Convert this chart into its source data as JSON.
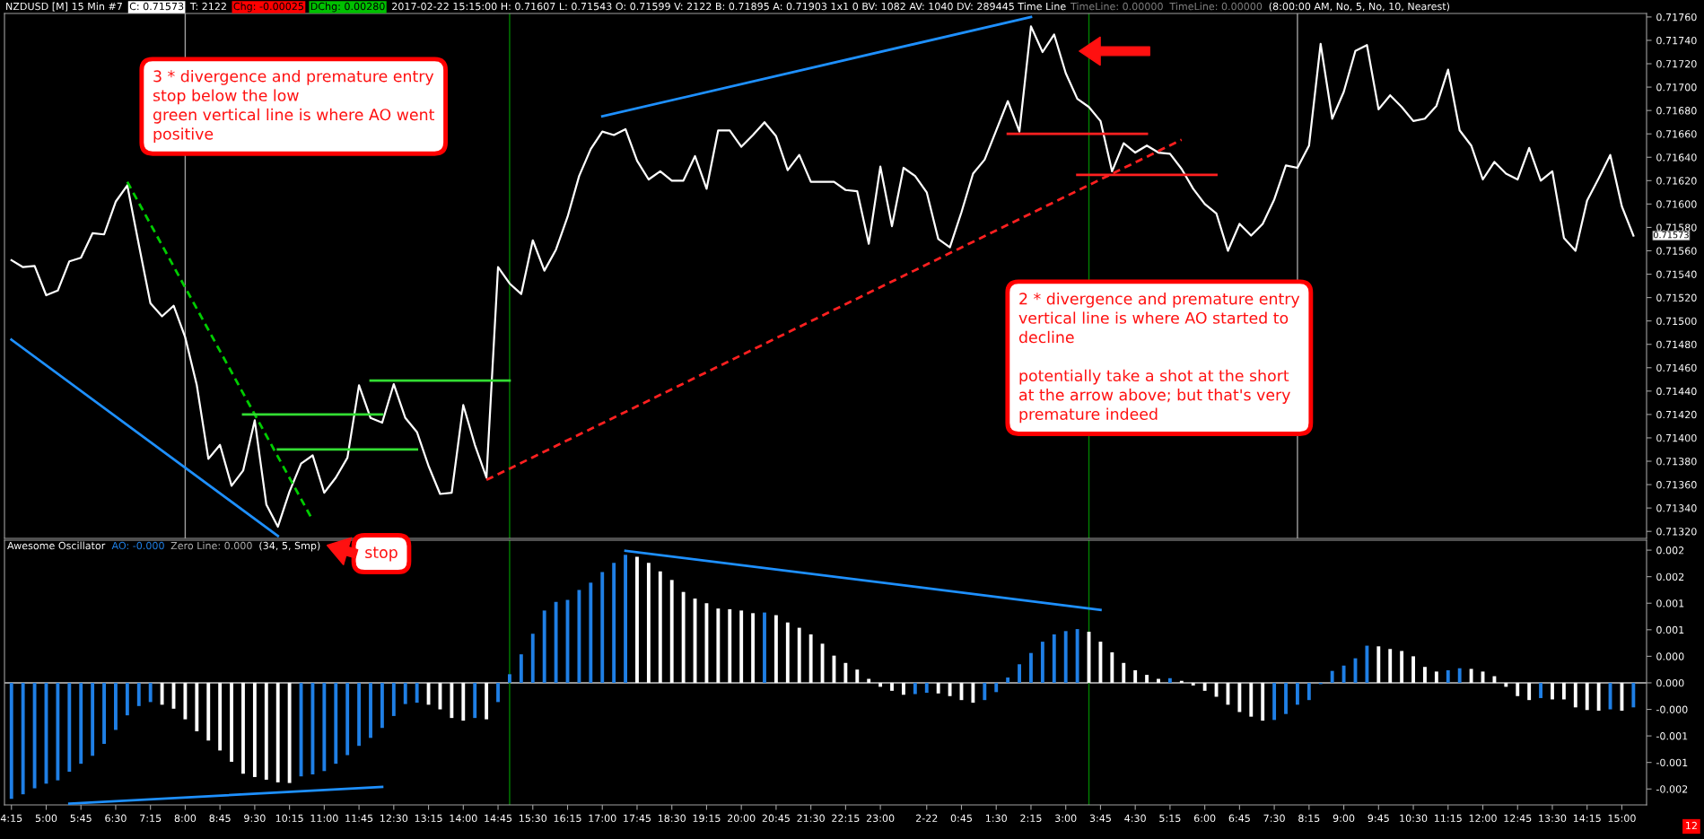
{
  "chart_data": [
    {
      "type": "line",
      "title": "NZDUSD [M] 15 Min #7",
      "x": [
        "2017-02-21T04:15",
        "2017-02-21T04:30",
        "2017-02-21T04:45",
        "2017-02-21T05:00",
        "2017-02-21T05:15",
        "2017-02-21T05:30",
        "2017-02-21T05:45",
        "2017-02-21T06:00",
        "2017-02-21T06:15",
        "2017-02-21T06:30",
        "2017-02-21T06:45",
        "2017-02-21T07:00",
        "2017-02-21T07:15",
        "2017-02-21T07:30",
        "2017-02-21T07:45",
        "2017-02-21T08:00",
        "2017-02-21T08:15",
        "2017-02-21T08:30",
        "2017-02-21T08:45",
        "2017-02-21T09:00",
        "2017-02-21T09:15",
        "2017-02-21T09:30",
        "2017-02-21T09:45",
        "2017-02-21T10:00",
        "2017-02-21T10:15",
        "2017-02-21T10:30",
        "2017-02-21T10:45",
        "2017-02-21T11:00",
        "2017-02-21T11:15",
        "2017-02-21T11:30",
        "2017-02-21T11:45",
        "2017-02-21T12:00",
        "2017-02-21T12:15",
        "2017-02-21T12:30",
        "2017-02-21T12:45",
        "2017-02-21T13:00",
        "2017-02-21T13:15",
        "2017-02-21T13:30",
        "2017-02-21T13:45",
        "2017-02-21T14:00",
        "2017-02-21T14:15",
        "2017-02-21T14:30",
        "2017-02-21T14:45",
        "2017-02-21T15:00",
        "2017-02-21T15:15",
        "2017-02-21T15:30",
        "2017-02-21T15:45",
        "2017-02-21T16:00",
        "2017-02-21T16:15",
        "2017-02-21T16:30",
        "2017-02-21T16:45",
        "2017-02-21T17:00",
        "2017-02-21T17:15",
        "2017-02-21T17:30",
        "2017-02-21T17:45",
        "2017-02-21T18:00",
        "2017-02-21T18:15",
        "2017-02-21T18:30",
        "2017-02-21T18:45",
        "2017-02-21T19:00",
        "2017-02-21T19:15",
        "2017-02-21T19:30",
        "2017-02-21T19:45",
        "2017-02-21T20:00",
        "2017-02-21T20:15",
        "2017-02-21T20:30",
        "2017-02-21T20:45",
        "2017-02-21T21:00",
        "2017-02-21T21:15",
        "2017-02-21T21:30",
        "2017-02-21T21:45",
        "2017-02-21T22:00",
        "2017-02-21T22:15",
        "2017-02-21T22:30",
        "2017-02-21T22:45",
        "2017-02-21T23:00",
        "2017-02-21T23:15",
        "2017-02-21T23:30",
        "2017-02-21T23:45",
        "2017-02-22T00:00",
        "2017-02-22T00:15",
        "2017-02-22T00:30",
        "2017-02-22T00:45",
        "2017-02-22T01:00",
        "2017-02-22T01:15",
        "2017-02-22T01:30",
        "2017-02-22T01:45",
        "2017-02-22T02:00",
        "2017-02-22T02:15",
        "2017-02-22T02:30",
        "2017-02-22T02:45",
        "2017-02-22T03:00",
        "2017-02-22T03:15",
        "2017-02-22T03:30",
        "2017-02-22T03:45",
        "2017-02-22T04:00",
        "2017-02-22T04:15",
        "2017-02-22T04:30",
        "2017-02-22T04:45",
        "2017-02-22T05:00",
        "2017-02-22T05:15",
        "2017-02-22T05:30",
        "2017-02-22T05:45",
        "2017-02-22T06:00",
        "2017-02-22T06:15",
        "2017-02-22T06:30",
        "2017-02-22T06:45",
        "2017-02-22T07:00",
        "2017-02-22T07:15",
        "2017-02-22T07:30",
        "2017-02-22T07:45",
        "2017-02-22T08:00",
        "2017-02-22T08:15",
        "2017-02-22T08:30",
        "2017-02-22T08:45",
        "2017-02-22T09:00",
        "2017-02-22T09:15",
        "2017-02-22T09:30",
        "2017-02-22T09:45",
        "2017-02-22T10:00",
        "2017-02-22T10:15",
        "2017-02-22T10:30",
        "2017-02-22T10:45",
        "2017-02-22T11:00",
        "2017-02-22T11:15",
        "2017-02-22T11:30",
        "2017-02-22T11:45",
        "2017-02-22T12:00",
        "2017-02-22T12:15",
        "2017-02-22T12:30",
        "2017-02-22T12:45",
        "2017-02-22T13:00",
        "2017-02-22T13:15",
        "2017-02-22T13:30",
        "2017-02-22T13:45",
        "2017-02-22T14:00",
        "2017-02-22T14:15",
        "2017-02-22T14:30",
        "2017-02-22T14:45",
        "2017-02-22T15:00",
        "2017-02-22T15:15"
      ],
      "series": [
        {
          "color": "#ffffff",
          "values": [
            0.71552,
            0.71546,
            0.71547,
            0.71522,
            0.71526,
            0.71551,
            0.71554,
            0.71575,
            0.71574,
            0.71602,
            0.71616,
            0.71565,
            0.71515,
            0.71504,
            0.71513,
            0.71486,
            0.71445,
            0.71382,
            0.71394,
            0.71359,
            0.71372,
            0.71415,
            0.71343,
            0.71324,
            0.71354,
            0.71378,
            0.71385,
            0.71353,
            0.71366,
            0.71383,
            0.71445,
            0.71417,
            0.71413,
            0.71446,
            0.71417,
            0.71405,
            0.71376,
            0.71352,
            0.71353,
            0.71428,
            0.71394,
            0.71366,
            0.71546,
            0.71532,
            0.71523,
            0.71569,
            0.71543,
            0.71561,
            0.71589,
            0.71624,
            0.71647,
            0.71662,
            0.71659,
            0.71664,
            0.71637,
            0.71621,
            0.71628,
            0.7162,
            0.7162,
            0.71641,
            0.71613,
            0.71663,
            0.71663,
            0.71649,
            0.71659,
            0.7167,
            0.71658,
            0.71629,
            0.71642,
            0.71619,
            0.71619,
            0.71619,
            0.71612,
            0.71611,
            0.71566,
            0.71632,
            0.71581,
            0.71631,
            0.71624,
            0.7161,
            0.7157,
            0.71563,
            0.71593,
            0.71626,
            0.71638,
            0.71663,
            0.71688,
            0.71662,
            0.71752,
            0.7173,
            0.71745,
            0.71712,
            0.7169,
            0.71683,
            0.71671,
            0.71628,
            0.71652,
            0.71644,
            0.7165,
            0.71644,
            0.71643,
            0.7163,
            0.71613,
            0.716,
            0.71592,
            0.7156,
            0.71583,
            0.71573,
            0.71583,
            0.71604,
            0.71633,
            0.71631,
            0.7165,
            0.71737,
            0.71673,
            0.71696,
            0.71731,
            0.71736,
            0.71681,
            0.71693,
            0.71683,
            0.71671,
            0.71673,
            0.71684,
            0.71715,
            0.71663,
            0.7165,
            0.71621,
            0.71636,
            0.71626,
            0.71621,
            0.71648,
            0.7162,
            0.71628,
            0.71571,
            0.7156,
            0.71603,
            0.71622,
            0.71642,
            0.71598,
            0.71573
          ]
        },
        {
          "type": "line",
          "color": "#1e90ff",
          "x": [
            "2017-02-21T04:15",
            "2017-02-21T10:00"
          ],
          "values": [
            0.71484,
            0.71316
          ]
        },
        {
          "type": "line",
          "color": "#00cc00",
          "line_style": "dashed",
          "x": [
            "2017-02-21T06:45",
            "2017-02-21T10:43"
          ],
          "values": [
            0.71619,
            0.71332
          ]
        },
        {
          "type": "line",
          "color": "#33dd33",
          "x": [
            "2017-02-21T09:15",
            "2017-02-21T12:15"
          ],
          "values": [
            0.7142,
            0.7142
          ]
        },
        {
          "type": "line",
          "color": "#33dd33",
          "x": [
            "2017-02-21T10:00",
            "2017-02-21T13:00"
          ],
          "values": [
            0.7139,
            0.7139
          ]
        },
        {
          "type": "line",
          "color": "#33dd33",
          "x": [
            "2017-02-21T12:00",
            "2017-02-21T15:00"
          ],
          "values": [
            0.71449,
            0.71449
          ]
        },
        {
          "type": "line",
          "color": "#ff2020",
          "line_style": "dashed",
          "x": [
            "2017-02-21T14:30",
            "2017-02-22T05:30"
          ],
          "values": [
            0.71364,
            0.71655
          ]
        },
        {
          "type": "line",
          "color": "#1e90ff",
          "x": [
            "2017-02-21T17:00",
            "2017-02-22T02:15"
          ],
          "values": [
            0.71675,
            0.7176
          ]
        },
        {
          "type": "line",
          "color": "#ff2020",
          "x": [
            "2017-02-22T01:45",
            "2017-02-22T04:45"
          ],
          "values": [
            0.7166,
            0.7166
          ]
        },
        {
          "type": "line",
          "color": "#ff2020",
          "x": [
            "2017-02-22T03:15",
            "2017-02-22T06:15"
          ],
          "values": [
            0.71625,
            0.71625
          ]
        }
      ],
      "xlim": [
        "2017-02-21T04:06",
        "2017-02-22T15:32"
      ],
      "ylim": [
        0.71314,
        0.71763
      ],
      "yticks": [
        {
          "value": 0.7132,
          "label": "0.71320"
        },
        {
          "value": 0.7134,
          "label": "0.71340"
        },
        {
          "value": 0.7136,
          "label": "0.71360"
        },
        {
          "value": 0.7138,
          "label": "0.71380"
        },
        {
          "value": 0.714,
          "label": "0.71400"
        },
        {
          "value": 0.7142,
          "label": "0.71420"
        },
        {
          "value": 0.7144,
          "label": "0.71440"
        },
        {
          "value": 0.7146,
          "label": "0.71460"
        },
        {
          "value": 0.7148,
          "label": "0.71480"
        },
        {
          "value": 0.715,
          "label": "0.71500"
        },
        {
          "value": 0.7152,
          "label": "0.71520"
        },
        {
          "value": 0.7154,
          "label": "0.71540"
        },
        {
          "value": 0.7156,
          "label": "0.71560"
        },
        {
          "value": 0.7158,
          "label": "0.71580"
        },
        {
          "value": 0.716,
          "label": "0.71600"
        },
        {
          "value": 0.7162,
          "label": "0.71620"
        },
        {
          "value": 0.7164,
          "label": "0.71640"
        },
        {
          "value": 0.7166,
          "label": "0.71660"
        },
        {
          "value": 0.7168,
          "label": "0.71680"
        },
        {
          "value": 0.717,
          "label": "0.71700"
        },
        {
          "value": 0.7172,
          "label": "0.71720"
        },
        {
          "value": 0.7174,
          "label": "0.71740"
        },
        {
          "value": 0.7176,
          "label": "0.71760"
        }
      ],
      "tick_labels": "y",
      "ref_lines": [
        {
          "axis": "x",
          "value": "2017-02-21T08:00",
          "color": "#a0a0a0"
        },
        {
          "axis": "x",
          "value": "2017-02-21T15:00",
          "color": "#008000"
        },
        {
          "axis": "x",
          "value": "2017-02-22T03:30",
          "color": "#008000"
        },
        {
          "axis": "x",
          "value": "2017-02-22T08:00",
          "color": "#a0a0a0"
        }
      ],
      "annotations": [
        "C: 0.71573",
        "T: 2122",
        "Chg: -0.00025",
        "DChg: 0.00280",
        "2017-02-22 15:15:00 H: 0.71607 L: 0.71543 O: 0.71599 V: 2122 B: 0.71895 A: 0.71903 1x1 0 BV: 1082 AV: 1040 DV: 289445 Time Line",
        "TimeLine: 0.00000",
        "TimeLine: 0.00000",
        "(8:00:00 AM, No, 5, No, 10, Nearest)",
        "3 * divergence and premature entry\nstop below the low\ngreen vertical line is where AO went\npositive",
        "2 * divergence and premature entry\nvertical line is where AO started to\ndecline\n\npotentially take a shot at the short\nat the arrow above; but that's very\npremature indeed",
        "stop",
        {
          "text": "0.71573",
          "x": "2017-02-22T15:15",
          "y": 0.71573
        }
      ]
    },
    {
      "type": "bar",
      "title": "Awesome Oscillator",
      "x": [
        "2017-02-21T04:15",
        "2017-02-21T04:30",
        "2017-02-21T04:45",
        "2017-02-21T05:00",
        "2017-02-21T05:15",
        "2017-02-21T05:30",
        "2017-02-21T05:45",
        "2017-02-21T06:00",
        "2017-02-21T06:15",
        "2017-02-21T06:30",
        "2017-02-21T06:45",
        "2017-02-21T07:00",
        "2017-02-21T07:15",
        "2017-02-21T07:30",
        "2017-02-21T07:45",
        "2017-02-21T08:00",
        "2017-02-21T08:15",
        "2017-02-21T08:30",
        "2017-02-21T08:45",
        "2017-02-21T09:00",
        "2017-02-21T09:15",
        "2017-02-21T09:30",
        "2017-02-21T09:45",
        "2017-02-21T10:00",
        "2017-02-21T10:15",
        "2017-02-21T10:30",
        "2017-02-21T10:45",
        "2017-02-21T11:00",
        "2017-02-21T11:15",
        "2017-02-21T11:30",
        "2017-02-21T11:45",
        "2017-02-21T12:00",
        "2017-02-21T12:15",
        "2017-02-21T12:30",
        "2017-02-21T12:45",
        "2017-02-21T13:00",
        "2017-02-21T13:15",
        "2017-02-21T13:30",
        "2017-02-21T13:45",
        "2017-02-21T14:00",
        "2017-02-21T14:15",
        "2017-02-21T14:30",
        "2017-02-21T14:45",
        "2017-02-21T15:00",
        "2017-02-21T15:15",
        "2017-02-21T15:30",
        "2017-02-21T15:45",
        "2017-02-21T16:00",
        "2017-02-21T16:15",
        "2017-02-21T16:30",
        "2017-02-21T16:45",
        "2017-02-21T17:00",
        "2017-02-21T17:15",
        "2017-02-21T17:30",
        "2017-02-21T17:45",
        "2017-02-21T18:00",
        "2017-02-21T18:15",
        "2017-02-21T18:30",
        "2017-02-21T18:45",
        "2017-02-21T19:00",
        "2017-02-21T19:15",
        "2017-02-21T19:30",
        "2017-02-21T19:45",
        "2017-02-21T20:00",
        "2017-02-21T20:15",
        "2017-02-21T20:30",
        "2017-02-21T20:45",
        "2017-02-21T21:00",
        "2017-02-21T21:15",
        "2017-02-21T21:30",
        "2017-02-21T21:45",
        "2017-02-21T22:00",
        "2017-02-21T22:15",
        "2017-02-21T22:30",
        "2017-02-21T22:45",
        "2017-02-21T23:00",
        "2017-02-21T23:15",
        "2017-02-21T23:30",
        "2017-02-21T23:45",
        "2017-02-22T00:00",
        "2017-02-22T00:15",
        "2017-02-22T00:30",
        "2017-02-22T00:45",
        "2017-02-22T01:00",
        "2017-02-22T01:15",
        "2017-02-22T01:30",
        "2017-02-22T01:45",
        "2017-02-22T02:00",
        "2017-02-22T02:15",
        "2017-02-22T02:30",
        "2017-02-22T02:45",
        "2017-02-22T03:00",
        "2017-02-22T03:15",
        "2017-02-22T03:30",
        "2017-02-22T03:45",
        "2017-02-22T04:00",
        "2017-02-22T04:15",
        "2017-02-22T04:30",
        "2017-02-22T04:45",
        "2017-02-22T05:00",
        "2017-02-22T05:15",
        "2017-02-22T05:30",
        "2017-02-22T05:45",
        "2017-02-22T06:00",
        "2017-02-22T06:15",
        "2017-02-22T06:30",
        "2017-02-22T06:45",
        "2017-02-22T07:00",
        "2017-02-22T07:15",
        "2017-02-22T07:30",
        "2017-02-22T07:45",
        "2017-02-22T08:00",
        "2017-02-22T08:15",
        "2017-02-22T08:30",
        "2017-02-22T08:45",
        "2017-02-22T09:00",
        "2017-02-22T09:15",
        "2017-02-22T09:30",
        "2017-02-22T09:45",
        "2017-02-22T10:00",
        "2017-02-22T10:15",
        "2017-02-22T10:30",
        "2017-02-22T10:45",
        "2017-02-22T11:00",
        "2017-02-22T11:15",
        "2017-02-22T11:30",
        "2017-02-22T11:45",
        "2017-02-22T12:00",
        "2017-02-22T12:15",
        "2017-02-22T12:30",
        "2017-02-22T12:45",
        "2017-02-22T13:00",
        "2017-02-22T13:15",
        "2017-02-22T13:30",
        "2017-02-22T13:45",
        "2017-02-22T14:00",
        "2017-02-22T14:15",
        "2017-02-22T14:30",
        "2017-02-22T14:45",
        "2017-02-22T15:00",
        "2017-02-22T15:15"
      ],
      "series": [
        {
          "values": [
            -0.00175,
            -0.00168,
            -0.00159,
            -0.00152,
            -0.00147,
            -0.00134,
            -0.00122,
            -0.0011,
            -0.00092,
            -0.00071,
            -0.00049,
            -0.00035,
            -0.00029,
            -0.00033,
            -0.00039,
            -0.00055,
            -0.00073,
            -0.00087,
            -0.00102,
            -0.00119,
            -0.00137,
            -0.00142,
            -0.00146,
            -0.0015,
            -0.00151,
            -0.00141,
            -0.00138,
            -0.00133,
            -0.00122,
            -0.00109,
            -0.00095,
            -0.00083,
            -0.00068,
            -0.0005,
            -0.00032,
            -0.0003,
            -0.00033,
            -0.0004,
            -0.00053,
            -0.00057,
            -0.00053,
            -0.00055,
            -0.00029,
            0.00013,
            0.00043,
            0.00074,
            0.00109,
            0.00122,
            0.00125,
            0.0014,
            0.00151,
            0.00167,
            0.00181,
            0.00193,
            0.0019,
            0.00181,
            0.00168,
            0.00155,
            0.00137,
            0.00127,
            0.0012,
            0.00112,
            0.00111,
            0.00109,
            0.00105,
            0.00106,
            0.00102,
            0.00091,
            0.00083,
            0.00073,
            0.00059,
            0.00041,
            0.0003,
            0.0002,
            6e-05,
            -6e-05,
            -0.00012,
            -0.00018,
            -0.00017,
            -0.00015,
            -0.00016,
            -0.0002,
            -0.00026,
            -0.0003,
            -0.00026,
            -0.00014,
            8e-05,
            0.00028,
            0.00045,
            0.00062,
            0.00073,
            0.00078,
            0.00081,
            0.00077,
            0.00062,
            0.00046,
            0.0003,
            0.00019,
            0.00012,
            6e-05,
            7e-05,
            3e-05,
            -4e-05,
            -0.00012,
            -0.00021,
            -0.00033,
            -0.00044,
            -0.00051,
            -0.00057,
            -0.00056,
            -0.00047,
            -0.00033,
            -0.00026,
            -2e-05,
            0.00018,
            0.00026,
            0.00037,
            0.00056,
            0.00055,
            0.00051,
            0.00048,
            0.0004,
            0.00024,
            0.00017,
            0.00019,
            0.00022,
            0.00021,
            0.00017,
            0.0001,
            -6e-05,
            -0.0002,
            -0.00026,
            -0.00023,
            -0.00025,
            -0.00025,
            -0.00037,
            -0.00041,
            -0.00042,
            -0.0004,
            -0.00042,
            -0.00037
          ],
          "colors": [
            "#1f7fe5",
            "#1f7fe5",
            "#1f7fe5",
            "#1f7fe5",
            "#1f7fe5",
            "#1f7fe5",
            "#1f7fe5",
            "#1f7fe5",
            "#1f7fe5",
            "#1f7fe5",
            "#1f7fe5",
            "#1f7fe5",
            "#1f7fe5",
            "#ffffff",
            "#ffffff",
            "#ffffff",
            "#ffffff",
            "#ffffff",
            "#ffffff",
            "#ffffff",
            "#ffffff",
            "#ffffff",
            "#ffffff",
            "#ffffff",
            "#ffffff",
            "#1f7fe5",
            "#1f7fe5",
            "#1f7fe5",
            "#1f7fe5",
            "#1f7fe5",
            "#1f7fe5",
            "#1f7fe5",
            "#1f7fe5",
            "#1f7fe5",
            "#1f7fe5",
            "#1f7fe5",
            "#ffffff",
            "#ffffff",
            "#ffffff",
            "#ffffff",
            "#1f7fe5",
            "#ffffff",
            "#1f7fe5",
            "#1f7fe5",
            "#1f7fe5",
            "#1f7fe5",
            "#1f7fe5",
            "#1f7fe5",
            "#1f7fe5",
            "#1f7fe5",
            "#1f7fe5",
            "#1f7fe5",
            "#1f7fe5",
            "#1f7fe5",
            "#ffffff",
            "#ffffff",
            "#ffffff",
            "#ffffff",
            "#ffffff",
            "#ffffff",
            "#ffffff",
            "#ffffff",
            "#ffffff",
            "#ffffff",
            "#ffffff",
            "#1f7fe5",
            "#ffffff",
            "#ffffff",
            "#ffffff",
            "#ffffff",
            "#ffffff",
            "#ffffff",
            "#ffffff",
            "#ffffff",
            "#ffffff",
            "#ffffff",
            "#ffffff",
            "#ffffff",
            "#1f7fe5",
            "#1f7fe5",
            "#ffffff",
            "#ffffff",
            "#ffffff",
            "#ffffff",
            "#1f7fe5",
            "#1f7fe5",
            "#1f7fe5",
            "#1f7fe5",
            "#1f7fe5",
            "#1f7fe5",
            "#1f7fe5",
            "#1f7fe5",
            "#1f7fe5",
            "#ffffff",
            "#ffffff",
            "#ffffff",
            "#ffffff",
            "#ffffff",
            "#ffffff",
            "#ffffff",
            "#1f7fe5",
            "#ffffff",
            "#ffffff",
            "#ffffff",
            "#ffffff",
            "#ffffff",
            "#ffffff",
            "#ffffff",
            "#ffffff",
            "#1f7fe5",
            "#1f7fe5",
            "#1f7fe5",
            "#1f7fe5",
            "#1f7fe5",
            "#1f7fe5",
            "#1f7fe5",
            "#1f7fe5",
            "#1f7fe5",
            "#ffffff",
            "#ffffff",
            "#ffffff",
            "#ffffff",
            "#ffffff",
            "#ffffff",
            "#1f7fe5",
            "#1f7fe5",
            "#ffffff",
            "#ffffff",
            "#ffffff",
            "#ffffff",
            "#ffffff",
            "#ffffff",
            "#1f7fe5",
            "#ffffff",
            "#ffffff",
            "#ffffff",
            "#ffffff",
            "#ffffff",
            "#1f7fe5",
            "#ffffff",
            "#1f7fe5"
          ]
        },
        {
          "type": "line",
          "color": "#1e90ff",
          "x": [
            "2017-02-21T05:30",
            "2017-02-21T12:15"
          ],
          "values": [
            -0.00182,
            -0.00157
          ]
        },
        {
          "type": "line",
          "color": "#1e90ff",
          "x": [
            "2017-02-21T17:30",
            "2017-02-22T03:45"
          ],
          "values": [
            0.00199,
            0.0011
          ]
        }
      ],
      "xlim": [
        "2017-02-21T04:06",
        "2017-02-22T15:32"
      ],
      "xticks": [
        {
          "value": "2017-02-21T04:15",
          "label": "4:15"
        },
        {
          "value": "2017-02-21T05:00",
          "label": "5:00"
        },
        {
          "value": "2017-02-21T05:45",
          "label": "5:45"
        },
        {
          "value": "2017-02-21T06:30",
          "label": "6:30"
        },
        {
          "value": "2017-02-21T07:15",
          "label": "7:15"
        },
        {
          "value": "2017-02-21T08:00",
          "label": "8:00"
        },
        {
          "value": "2017-02-21T08:45",
          "label": "8:45"
        },
        {
          "value": "2017-02-21T09:30",
          "label": "9:30"
        },
        {
          "value": "2017-02-21T10:15",
          "label": "10:15"
        },
        {
          "value": "2017-02-21T11:00",
          "label": "11:00"
        },
        {
          "value": "2017-02-21T11:45",
          "label": "11:45"
        },
        {
          "value": "2017-02-21T12:30",
          "label": "12:30"
        },
        {
          "value": "2017-02-21T13:15",
          "label": "13:15"
        },
        {
          "value": "2017-02-21T14:00",
          "label": "14:00"
        },
        {
          "value": "2017-02-21T14:45",
          "label": "14:45"
        },
        {
          "value": "2017-02-21T15:30",
          "label": "15:30"
        },
        {
          "value": "2017-02-21T16:15",
          "label": "16:15"
        },
        {
          "value": "2017-02-21T17:00",
          "label": "17:00"
        },
        {
          "value": "2017-02-21T17:45",
          "label": "17:45"
        },
        {
          "value": "2017-02-21T18:30",
          "label": "18:30"
        },
        {
          "value": "2017-02-21T19:15",
          "label": "19:15"
        },
        {
          "value": "2017-02-21T20:00",
          "label": "20:00"
        },
        {
          "value": "2017-02-21T20:45",
          "label": "20:45"
        },
        {
          "value": "2017-02-21T21:30",
          "label": "21:30"
        },
        {
          "value": "2017-02-21T22:15",
          "label": "22:15"
        },
        {
          "value": "2017-02-21T23:00",
          "label": "23:00"
        },
        {
          "value": "2017-02-22T00:00",
          "label": "2-22"
        },
        {
          "value": "2017-02-22T00:45",
          "label": "0:45"
        },
        {
          "value": "2017-02-22T01:30",
          "label": "1:30"
        },
        {
          "value": "2017-02-22T02:15",
          "label": "2:15"
        },
        {
          "value": "2017-02-22T03:00",
          "label": "3:00"
        },
        {
          "value": "2017-02-22T03:45",
          "label": "3:45"
        },
        {
          "value": "2017-02-22T04:30",
          "label": "4:30"
        },
        {
          "value": "2017-02-22T05:15",
          "label": "5:15"
        },
        {
          "value": "2017-02-22T06:00",
          "label": "6:00"
        },
        {
          "value": "2017-02-22T06:45",
          "label": "6:45"
        },
        {
          "value": "2017-02-22T07:30",
          "label": "7:30"
        },
        {
          "value": "2017-02-22T08:15",
          "label": "8:15"
        },
        {
          "value": "2017-02-22T09:00",
          "label": "9:00"
        },
        {
          "value": "2017-02-22T09:45",
          "label": "9:45"
        },
        {
          "value": "2017-02-22T10:30",
          "label": "10:30"
        },
        {
          "value": "2017-02-22T11:15",
          "label": "11:15"
        },
        {
          "value": "2017-02-22T12:00",
          "label": "12:00"
        },
        {
          "value": "2017-02-22T12:45",
          "label": "12:45"
        },
        {
          "value": "2017-02-22T13:30",
          "label": "13:30"
        },
        {
          "value": "2017-02-22T14:15",
          "label": "14:15"
        },
        {
          "value": "2017-02-22T15:00",
          "label": "15:00"
        }
      ],
      "ylim": [
        -0.00184,
        0.00215
      ],
      "yticks": [
        {
          "value": -0.0016,
          "label": "-0.002"
        },
        {
          "value": -0.0012,
          "label": "-0.001"
        },
        {
          "value": -0.0008,
          "label": "-0.001"
        },
        {
          "value": -0.0004,
          "label": "-0.000"
        },
        {
          "value": 0,
          "label": "0.000"
        },
        {
          "value": 0.0004,
          "label": "0.000"
        },
        {
          "value": 0.0008,
          "label": "0.001"
        },
        {
          "value": 0.0012,
          "label": "0.001"
        },
        {
          "value": 0.0016,
          "label": "0.002"
        },
        {
          "value": 0.002,
          "label": "0.002"
        }
      ],
      "ref_lines": [
        {
          "axis": "y",
          "value": 0,
          "color": "#c8c8c8"
        },
        {
          "axis": "x",
          "value": "2017-02-21T15:00",
          "color": "#008000"
        },
        {
          "axis": "x",
          "value": "2017-02-22T03:30",
          "color": "#008000"
        }
      ],
      "annotations": [
        "AO: -0.000",
        "Zero Line: 0.000",
        "(34, 5, Smp)",
        "12"
      ]
    }
  ]
}
